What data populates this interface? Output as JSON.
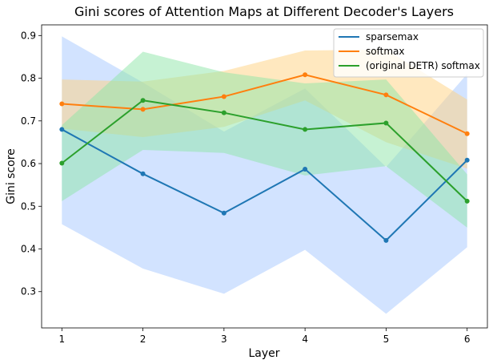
{
  "chart_data": {
    "type": "line",
    "title": "Gini scores of Attention Maps at Different Decoder's Layers",
    "xlabel": "Layer",
    "ylabel": "Gini score",
    "x": [
      1,
      2,
      3,
      4,
      5,
      6
    ],
    "xticks": [
      "1",
      "2",
      "3",
      "4",
      "5",
      "6"
    ],
    "yticks": [
      "0.3",
      "0.4",
      "0.5",
      "0.6",
      "0.7",
      "0.8",
      "0.9"
    ],
    "xlim": [
      0.75,
      6.25
    ],
    "ylim": [
      0.215,
      0.925
    ],
    "grid": false,
    "legend_position": "top-right",
    "series": [
      {
        "name": "sparsemax",
        "color": "#1f77b4",
        "band_color": "#a6c8ff",
        "values": [
          0.68,
          0.576,
          0.484,
          0.587,
          0.42,
          0.608
        ],
        "band_lower": [
          0.458,
          0.354,
          0.295,
          0.398,
          0.248,
          0.404
        ],
        "band_upper": [
          0.898,
          0.79,
          0.675,
          0.776,
          0.592,
          0.81
        ]
      },
      {
        "name": "softmax",
        "color": "#ff7f0e",
        "band_color": "#ffd27f",
        "values": [
          0.74,
          0.727,
          0.757,
          0.808,
          0.761,
          0.67
        ],
        "band_lower": [
          0.682,
          0.662,
          0.686,
          0.748,
          0.65,
          0.588
        ],
        "band_upper": [
          0.797,
          0.792,
          0.817,
          0.865,
          0.867,
          0.75
        ]
      },
      {
        "name": "(original DETR) softmax",
        "color": "#2ca02c",
        "band_color": "#8ee6a8",
        "values": [
          0.601,
          0.748,
          0.719,
          0.68,
          0.695,
          0.512
        ],
        "band_lower": [
          0.512,
          0.632,
          0.625,
          0.572,
          0.594,
          0.45
        ],
        "band_upper": [
          0.69,
          0.862,
          0.814,
          0.788,
          0.797,
          0.575
        ]
      }
    ]
  }
}
